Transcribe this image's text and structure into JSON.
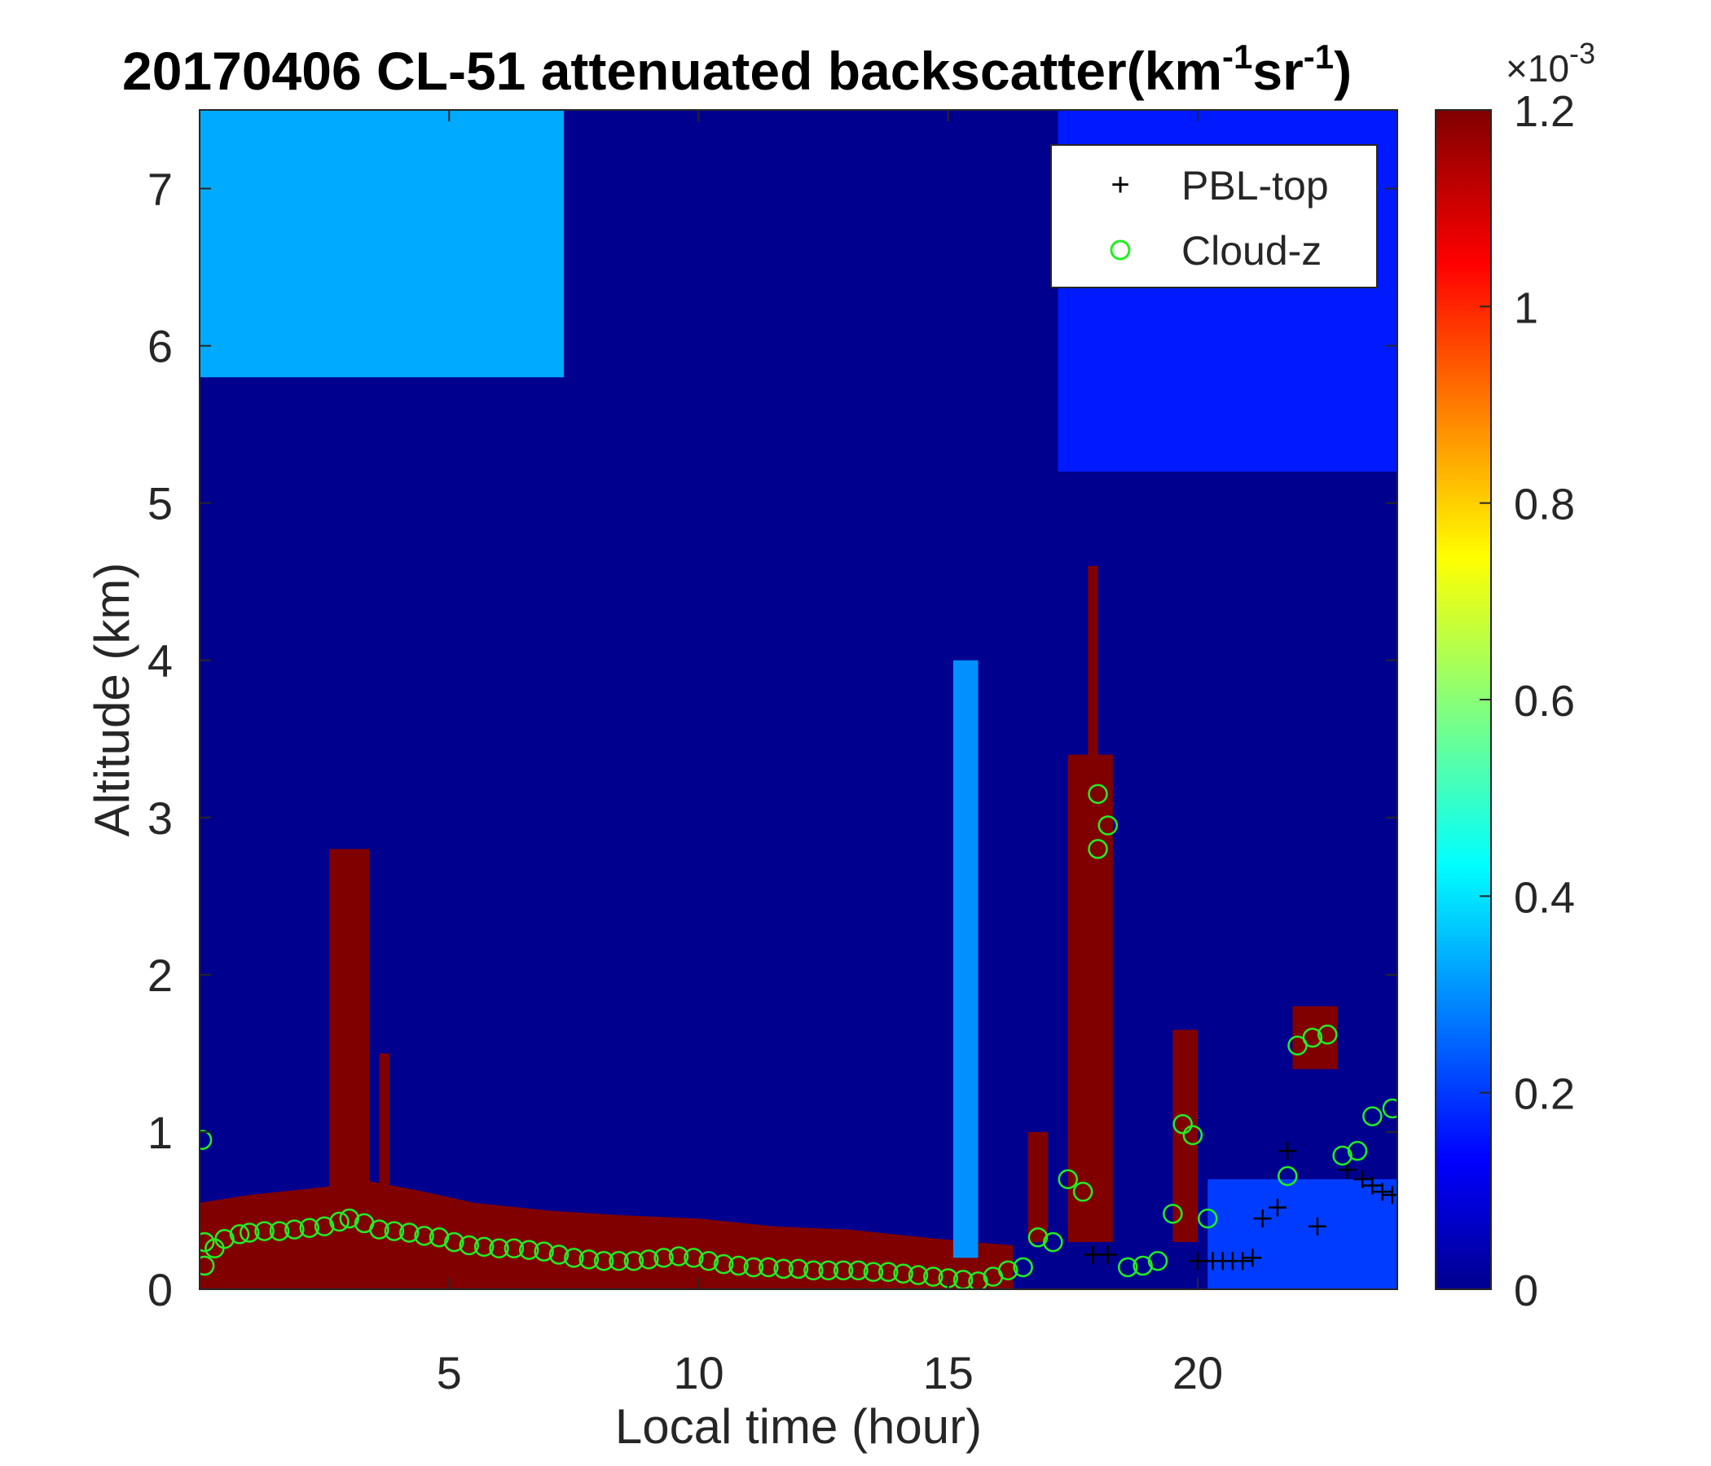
{
  "chart_data": {
    "type": "heatmap",
    "title": {
      "prefix": "20170406  CL-51 attenuated backscatter(km",
      "sup1": "-1",
      "mid": "sr",
      "sup2": "-1",
      "suffix": ")"
    },
    "xlabel": "Local time (hour)",
    "ylabel": "Altitude (km)",
    "xlim": [
      0,
      24
    ],
    "ylim": [
      0,
      7.5
    ],
    "xticks": [
      "5",
      "10",
      "15",
      "20"
    ],
    "yticks": [
      "0",
      "1",
      "2",
      "3",
      "4",
      "5",
      "6",
      "7"
    ],
    "colorbar": {
      "colormap": "jet",
      "clim": [
        0,
        0.0012
      ],
      "exponent_label": "×10",
      "exponent_sup": "-3",
      "ticks": [
        "0",
        "0.2",
        "0.4",
        "0.6",
        "0.8",
        "1",
        "1.2"
      ]
    },
    "legend": {
      "position": "top-right",
      "items": [
        {
          "marker": "+",
          "label": "PBL-top",
          "color": "#000000"
        },
        {
          "marker": "o",
          "label": "Cloud-z",
          "color": "#22ee22"
        }
      ]
    },
    "background_level": 8e-05,
    "regions": [
      {
        "desc": "surface aerosol layer",
        "level": 0.0012,
        "top": [
          [
            0,
            0.55
          ],
          [
            1.0,
            0.6
          ],
          [
            2.5,
            0.65
          ],
          [
            3.2,
            0.7
          ],
          [
            4.5,
            0.62
          ],
          [
            5.5,
            0.55
          ],
          [
            7,
            0.5
          ],
          [
            8.5,
            0.47
          ],
          [
            10,
            0.45
          ],
          [
            11.5,
            0.4
          ],
          [
            13,
            0.38
          ],
          [
            14.5,
            0.33
          ],
          [
            15.5,
            0.3
          ],
          [
            16.3,
            0.28
          ]
        ]
      },
      {
        "desc": "upper-level aerosol (left)",
        "level": 0.00035,
        "x": [
          0,
          7.3
        ],
        "y": [
          5.8,
          7.5
        ]
      },
      {
        "desc": "upper haze right",
        "level": 0.00018,
        "x": [
          17.2,
          24
        ],
        "y": [
          5.2,
          7.5
        ]
      },
      {
        "desc": "falling streak",
        "level": 0.00032,
        "x": [
          15.1,
          15.6
        ],
        "y": [
          0.2,
          4.0
        ]
      },
      {
        "desc": "cloud column 1",
        "level": 0.0012,
        "x": [
          2.6,
          3.4
        ],
        "y": [
          0.6,
          2.8
        ]
      },
      {
        "desc": "cloud column 2",
        "level": 0.0012,
        "x": [
          3.6,
          3.8
        ],
        "y": [
          0.6,
          1.5
        ]
      },
      {
        "desc": "cloud 17h",
        "level": 0.0012,
        "x": [
          16.6,
          17.0
        ],
        "y": [
          0.3,
          1.0
        ]
      },
      {
        "desc": "cloud 17.4-18.3h",
        "level": 0.0012,
        "x": [
          17.4,
          18.3
        ],
        "y": [
          0.3,
          3.4
        ]
      },
      {
        "desc": "cloud spike 17.8h",
        "level": 0.0012,
        "x": [
          17.8,
          18.0
        ],
        "y": [
          2.3,
          4.6
        ]
      },
      {
        "desc": "cloud 19.6-20h",
        "level": 0.0012,
        "x": [
          19.5,
          20.0
        ],
        "y": [
          0.3,
          1.65
        ]
      },
      {
        "desc": "cloud 22h",
        "level": 0.0012,
        "x": [
          21.9,
          22.8
        ],
        "y": [
          1.4,
          1.8
        ]
      },
      {
        "desc": "blue aerosol right",
        "level": 0.00022,
        "x": [
          20.2,
          24
        ],
        "y": [
          0,
          0.7
        ]
      }
    ],
    "pbl_top": {
      "x": [
        17.9,
        18.2,
        20.0,
        20.3,
        20.5,
        20.7,
        20.9,
        21.1,
        21.3,
        21.6,
        21.8,
        22.4,
        23.0,
        23.3,
        23.5,
        23.7,
        23.9
      ],
      "y": [
        0.22,
        0.22,
        0.18,
        0.18,
        0.18,
        0.18,
        0.18,
        0.2,
        0.45,
        0.52,
        0.88,
        0.4,
        0.76,
        0.7,
        0.66,
        0.62,
        0.6
      ]
    },
    "cloud_z": {
      "x": [
        0.1,
        0.3,
        0.5,
        0.8,
        1.0,
        1.3,
        1.6,
        1.9,
        2.2,
        2.5,
        2.8,
        3.0,
        3.3,
        3.6,
        3.9,
        4.2,
        4.5,
        4.8,
        5.1,
        5.4,
        5.7,
        6.0,
        6.3,
        6.6,
        6.9,
        7.2,
        7.5,
        7.8,
        8.1,
        8.4,
        8.7,
        9.0,
        9.3,
        9.6,
        9.9,
        10.2,
        10.5,
        10.8,
        11.1,
        11.4,
        11.7,
        12.0,
        12.3,
        12.6,
        12.9,
        13.2,
        13.5,
        13.8,
        14.1,
        14.4,
        14.7,
        15.0,
        15.3,
        15.6,
        15.9,
        16.2,
        16.5,
        16.8,
        17.1,
        17.4,
        17.7,
        18.0,
        18.2,
        18.6,
        18.9,
        19.2,
        19.5,
        19.7,
        19.9,
        20.2,
        21.8,
        22.0,
        22.3,
        22.6,
        22.9,
        23.2,
        23.5,
        23.9,
        0.05,
        0.1,
        18.0
      ],
      "y": [
        0.3,
        0.26,
        0.32,
        0.35,
        0.36,
        0.37,
        0.37,
        0.38,
        0.39,
        0.4,
        0.43,
        0.45,
        0.42,
        0.38,
        0.37,
        0.36,
        0.34,
        0.33,
        0.3,
        0.28,
        0.27,
        0.26,
        0.26,
        0.25,
        0.24,
        0.22,
        0.2,
        0.19,
        0.18,
        0.18,
        0.18,
        0.19,
        0.2,
        0.21,
        0.2,
        0.18,
        0.16,
        0.15,
        0.14,
        0.14,
        0.13,
        0.13,
        0.12,
        0.12,
        0.12,
        0.12,
        0.11,
        0.11,
        0.1,
        0.09,
        0.08,
        0.07,
        0.06,
        0.05,
        0.08,
        0.12,
        0.14,
        0.33,
        0.3,
        0.7,
        0.62,
        3.15,
        2.95,
        0.14,
        0.15,
        0.18,
        0.48,
        1.05,
        0.98,
        0.45,
        0.72,
        1.55,
        1.6,
        1.62,
        0.85,
        0.88,
        1.1,
        1.15,
        0.95,
        0.15,
        2.8
      ]
    }
  }
}
